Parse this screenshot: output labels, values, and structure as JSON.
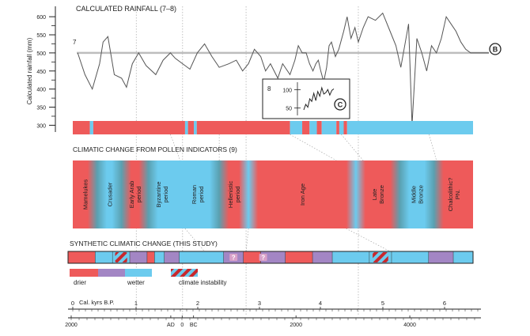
{
  "colors": {
    "drier": "#ee5a5a",
    "wetter": "#6ccbee",
    "intermediate": "#a386c4",
    "instability_stripe": "#c8282d",
    "grid": "#9a9a9a",
    "reference": "#bdbdbd"
  },
  "chart_data": [
    {
      "type": "line",
      "title": "CALCULATED RAINFALL (7–8)",
      "ylabel": "Calculated rainfall (mm)",
      "yticks": [
        "600",
        "550",
        "500",
        "450",
        "400",
        "350",
        "300"
      ],
      "ylim": [
        290,
        620
      ],
      "x_units": "Cal. kyrs B.P.",
      "xlim": [
        0,
        8.2
      ],
      "reference": {
        "label": "7",
        "value": 500
      },
      "end_marker": "B",
      "series": [
        {
          "x": [
            0.1,
            0.25,
            0.4,
            0.55,
            0.62,
            0.72,
            0.85,
            1.0,
            1.1,
            1.22,
            1.35,
            1.5,
            1.7,
            1.85,
            2.0,
            2.1,
            2.25,
            2.4,
            2.55,
            2.7,
            2.85,
            3.0,
            3.2,
            3.35,
            3.48,
            3.6,
            3.72,
            3.85,
            3.95,
            4.05,
            4.2,
            4.3,
            4.45,
            4.55,
            4.62,
            4.7,
            4.78,
            4.85,
            4.92,
            4.98,
            5.03,
            5.08,
            5.14,
            5.2,
            5.25,
            5.3,
            5.38,
            5.45,
            5.55,
            5.62,
            5.7,
            5.78,
            5.85,
            5.95,
            6.05,
            6.2,
            6.35,
            6.5,
            6.62,
            6.72,
            6.8,
            6.88,
            6.95,
            7.05,
            7.15,
            7.25,
            7.35,
            7.45,
            7.55,
            7.65,
            7.75,
            7.85,
            7.95,
            8.05,
            8.15
          ],
          "y": [
            500,
            440,
            400,
            470,
            530,
            545,
            440,
            430,
            405,
            470,
            500,
            465,
            440,
            480,
            500,
            485,
            470,
            455,
            500,
            525,
            490,
            460,
            470,
            480,
            450,
            470,
            510,
            490,
            450,
            470,
            430,
            470,
            440,
            480,
            520,
            500,
            500,
            470,
            450,
            470,
            480,
            450,
            420,
            460,
            520,
            530,
            490,
            510,
            560,
            600,
            540,
            570,
            530,
            570,
            600,
            590,
            610,
            560,
            520,
            460,
            520,
            580,
            300,
            540,
            500,
            450,
            520,
            500,
            540,
            600,
            580,
            560,
            530,
            510,
            500
          ]
        }
      ]
    },
    {
      "type": "line",
      "yticks": [
        "100",
        "50"
      ],
      "ylim": [
        30,
        120
      ],
      "label": "8",
      "marker": "C",
      "series": [
        {
          "values": [
            45,
            60,
            52,
            75,
            68,
            90,
            70,
            95,
            82,
            105,
            88,
            92,
            100,
            85,
            98,
            102
          ]
        }
      ]
    }
  ],
  "rainfall_bar": [
    {
      "kind": "drier",
      "from": 0,
      "to": 0.35
    },
    {
      "kind": "wetter",
      "from": 0.35,
      "to": 0.42
    },
    {
      "kind": "drier",
      "from": 0.42,
      "to": 2.3
    },
    {
      "kind": "wetter",
      "from": 2.3,
      "to": 2.36
    },
    {
      "kind": "drier",
      "from": 2.36,
      "to": 2.48
    },
    {
      "kind": "wetter",
      "from": 2.48,
      "to": 2.54
    },
    {
      "kind": "drier",
      "from": 2.54,
      "to": 4.45
    },
    {
      "kind": "wetter",
      "from": 4.45,
      "to": 4.7
    },
    {
      "kind": "drier",
      "from": 4.7,
      "to": 4.85
    },
    {
      "kind": "wetter",
      "from": 4.85,
      "to": 5.0
    },
    {
      "kind": "drier",
      "from": 5.0,
      "to": 5.1
    },
    {
      "kind": "wetter",
      "from": 5.1,
      "to": 5.4
    },
    {
      "kind": "drier",
      "from": 5.4,
      "to": 5.46
    },
    {
      "kind": "wetter",
      "from": 5.46,
      "to": 5.55
    },
    {
      "kind": "drier",
      "from": 5.55,
      "to": 5.62
    },
    {
      "kind": "wetter",
      "from": 5.62,
      "to": 8.2
    }
  ],
  "pollen": {
    "title": "CLIMATIC CHANGE FROM POLLEN INDICATORS (9)",
    "periods": [
      {
        "label": [
          "Mamelukes"
        ],
        "kind": "drier",
        "from": 0.0,
        "to": 0.5
      },
      {
        "label": [
          "Crusader"
        ],
        "kind": "wetter",
        "from": 0.5,
        "to": 1.0
      },
      {
        "label": [
          "Early Arab",
          "period"
        ],
        "kind": "drier",
        "from": 1.0,
        "to": 1.55
      },
      {
        "label": [
          "Byzantine",
          "period"
        ],
        "kind": "wetter",
        "from": 1.55,
        "to": 2.1
      },
      {
        "label": [
          "Roman",
          "period"
        ],
        "kind": "wetter",
        "from": 2.1,
        "to": 3.0
      },
      {
        "label": [
          "Hellenistic",
          "period"
        ],
        "kind": "drier",
        "from": 3.0,
        "to": 3.6
      },
      {
        "label": [
          "Iron Age"
        ],
        "kind": "drier",
        "from": 3.6,
        "to": 5.8
      },
      {
        "label": [
          "Late",
          "Bronze"
        ],
        "kind": "drier",
        "from": 5.8,
        "to": 6.7
      },
      {
        "label": [
          "Middle",
          "Bronze"
        ],
        "kind": "wetter",
        "from": 6.7,
        "to": 7.4
      },
      {
        "label": [
          "Chalcolithic?",
          "PN."
        ],
        "kind": "drier",
        "from": 7.4,
        "to": 8.2
      }
    ]
  },
  "synthetic": {
    "title": "SYNTHETIC CLIMATIC CHANGE (THIS STUDY)",
    "segments": [
      {
        "kind": "drier",
        "from": 0.0,
        "to": 0.55
      },
      {
        "kind": "wetter",
        "from": 0.55,
        "to": 0.9
      },
      {
        "kind": "instability",
        "from": 0.9,
        "to": 1.25
      },
      {
        "kind": "intermediate",
        "from": 1.25,
        "to": 1.6
      },
      {
        "kind": "drier",
        "from": 1.6,
        "to": 1.75
      },
      {
        "kind": "wetter",
        "from": 1.75,
        "to": 1.95
      },
      {
        "kind": "intermediate",
        "from": 1.95,
        "to": 2.25
      },
      {
        "kind": "wetter",
        "from": 2.25,
        "to": 3.15
      },
      {
        "kind": "intermediate",
        "from": 3.15,
        "to": 3.55
      },
      {
        "kind": "drier",
        "from": 3.55,
        "to": 3.9
      },
      {
        "kind": "intermediate",
        "from": 3.9,
        "to": 4.4
      },
      {
        "kind": "drier",
        "from": 4.4,
        "to": 4.95
      },
      {
        "kind": "intermediate",
        "from": 4.95,
        "to": 5.35
      },
      {
        "kind": "wetter",
        "from": 5.35,
        "to": 6.1
      },
      {
        "kind": "instability",
        "from": 6.1,
        "to": 6.55
      },
      {
        "kind": "wetter",
        "from": 6.55,
        "to": 7.3
      },
      {
        "kind": "intermediate",
        "from": 7.3,
        "to": 7.8
      },
      {
        "kind": "wetter",
        "from": 7.8,
        "to": 8.2
      }
    ],
    "unknowns": [
      {
        "label": "?",
        "at": 3.35
      },
      {
        "label": "?",
        "at": 3.95
      }
    ]
  },
  "legend": {
    "drier": "drier",
    "wetter": "wetter",
    "instability": "climate instability"
  },
  "axis": {
    "kyrs_label": "Cal. kyrs B.P.",
    "kyrs_ticks": [
      "0",
      "1",
      "2",
      "3",
      "4",
      "5",
      "6"
    ],
    "year_ticks": [
      {
        "label": "2000",
        "at": 0
      },
      {
        "label": "AD",
        "at": 1.75
      },
      {
        "label": "0",
        "at": 1.95
      },
      {
        "label": "BC",
        "at": 2.15
      },
      {
        "label": "2000",
        "at": 3.95
      },
      {
        "label": "4000",
        "at": 5.95
      }
    ]
  }
}
